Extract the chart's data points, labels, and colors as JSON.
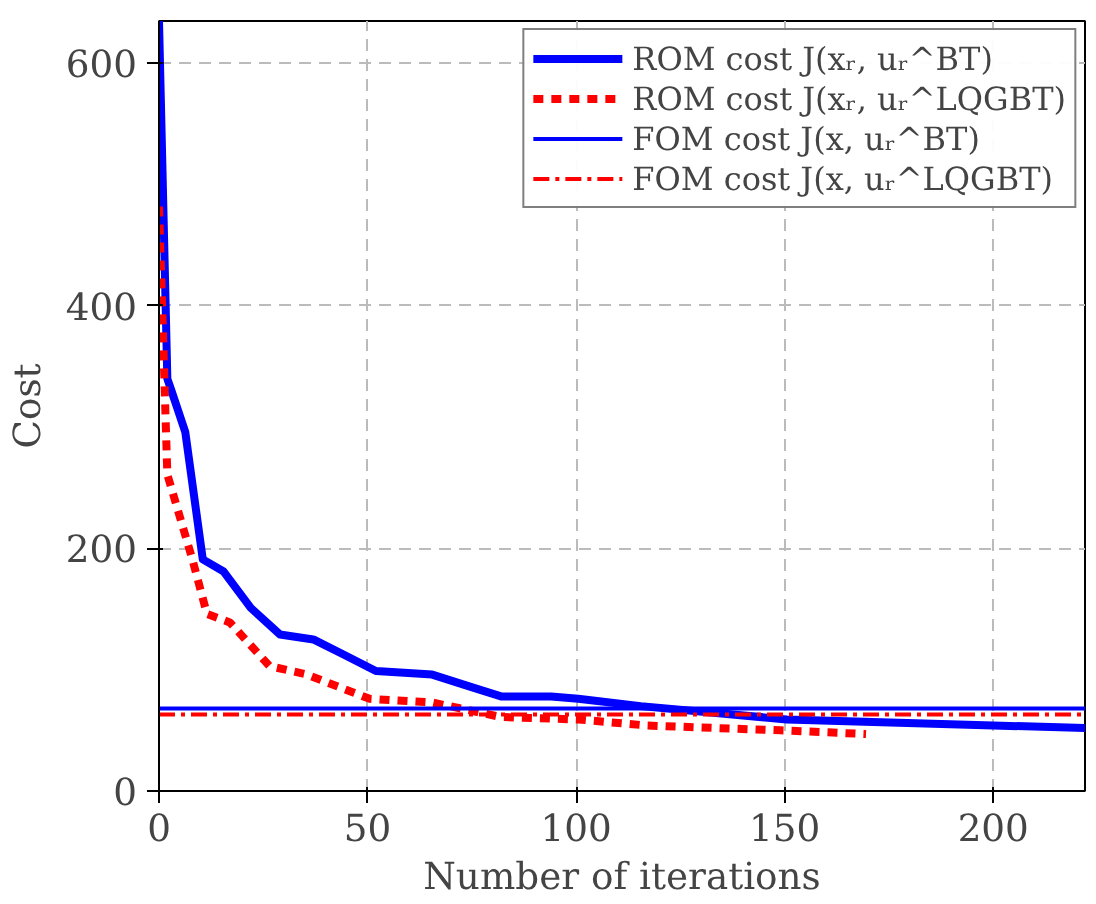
{
  "chart_data": {
    "type": "line",
    "xlabel": "Number of iterations",
    "ylabel": "Cost",
    "xlim": [
      0,
      222
    ],
    "ylim": [
      0,
      635
    ],
    "xticks": [
      0,
      50,
      100,
      150,
      200
    ],
    "yticks": [
      0,
      200,
      400,
      600
    ],
    "grid": true,
    "legend": "top right",
    "series": [
      {
        "name": "ROM cost J(xᵣ, uᵣ^BT)",
        "color": "#0000ff",
        "line_style": "solid",
        "x": [
          0,
          2,
          3,
          6.3,
          10.5,
          15.5,
          22,
          29,
          37,
          44,
          52,
          65.5,
          75.5,
          82,
          94,
          100.5,
          115.5,
          150.5,
          200,
          222
        ],
        "values": [
          635,
          340,
          330,
          296,
          191,
          181,
          151,
          129,
          125,
          113,
          99,
          96,
          85,
          78,
          78,
          76,
          70,
          59,
          54,
          52
        ]
      },
      {
        "name": "ROM cost J(xᵣ, uᵣ^LQGBT)",
        "color": "#ff0000",
        "line_style": "dashed",
        "x": [
          0,
          2,
          8,
          11.5,
          17,
          26.5,
          35.5,
          50.5,
          65.5,
          82,
          100.5,
          117,
          149,
          169.5
        ],
        "values": [
          482,
          261,
          191,
          146,
          139,
          103,
          96,
          76,
          73,
          61,
          59,
          54,
          50,
          47
        ]
      },
      {
        "name": "FOM cost J(x, uᵣ^BT)",
        "color": "#0000ff",
        "line_style": "solid",
        "x": [
          0,
          222
        ],
        "values": [
          68,
          68
        ]
      },
      {
        "name": "FOM cost J(x, uᵣ^LQGBT)",
        "color": "#ff0000",
        "line_style": "dashdot",
        "x": [
          0,
          222
        ],
        "values": [
          63,
          63
        ]
      }
    ]
  }
}
